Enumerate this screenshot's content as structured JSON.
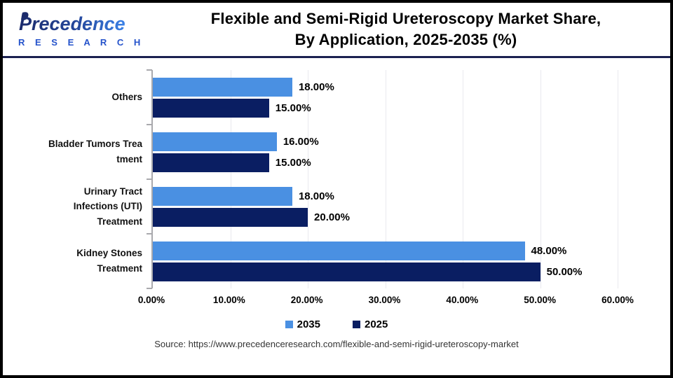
{
  "header": {
    "logo_brand": "Precedence",
    "logo_sub": "R E S E A R C H",
    "title_line1": "Flexible and Semi-Rigid Ureteroscopy Market Share,",
    "title_line2": "By Application, 2025-2035 (%)"
  },
  "chart_data": {
    "type": "bar",
    "orientation": "horizontal",
    "categories": [
      "Others",
      "Bladder Tumors Trea\ntment",
      "Urinary Tract\nInfections (UTI)\nTreatment",
      "Kidney Stones\nTreatment"
    ],
    "series": [
      {
        "name": "2035",
        "color": "#4a90e2",
        "values": [
          18,
          16,
          18,
          48
        ],
        "labels": [
          "18.00%",
          "16.00%",
          "18.00%",
          "48.00%"
        ]
      },
      {
        "name": "2025",
        "color": "#0a1e62",
        "values": [
          15,
          15,
          20,
          50
        ],
        "labels": [
          "15.00%",
          "15.00%",
          "20.00%",
          "50.00%"
        ]
      }
    ],
    "x_axis": {
      "min": 0,
      "max": 60,
      "step": 10,
      "tick_labels": [
        "0.00%",
        "10.00%",
        "20.00%",
        "30.00%",
        "40.00%",
        "50.00%",
        "60.00%"
      ]
    },
    "grid": true,
    "legend_position": "bottom",
    "legend": [
      {
        "label": "2035",
        "color": "#4a90e2"
      },
      {
        "label": "2025",
        "color": "#0a1e62"
      }
    ]
  },
  "footer": {
    "source": "Source: https://www.precedenceresearch.com/flexible-and-semi-rigid-ureteroscopy-market"
  }
}
